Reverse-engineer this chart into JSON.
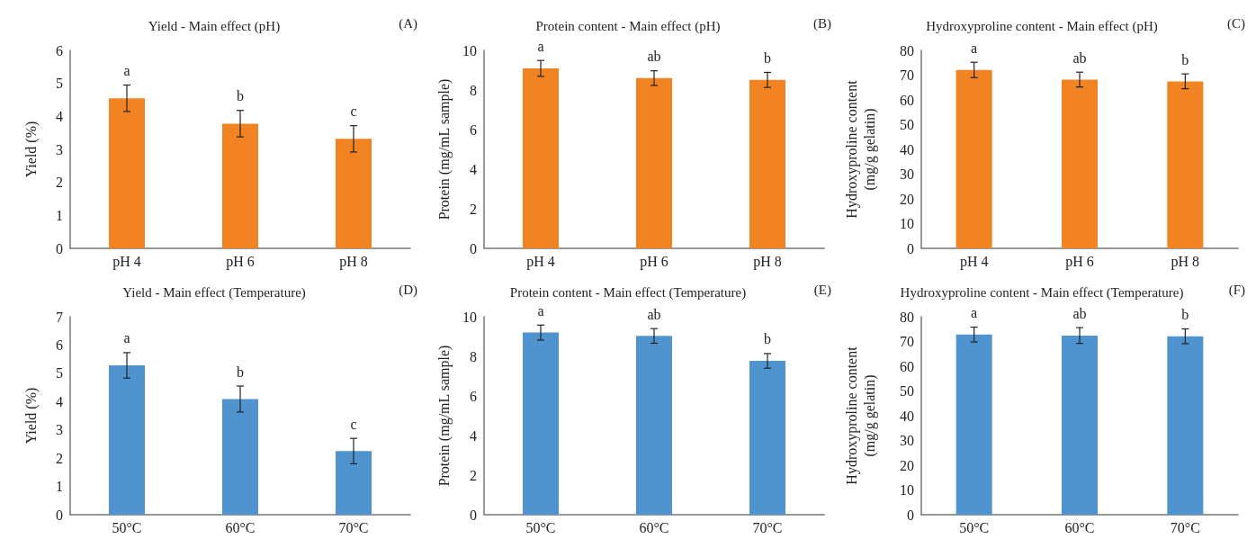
{
  "chart_data": [
    {
      "type": "bar",
      "title": "Yield - Main effect (pH)",
      "ylabel": "Yield (%)",
      "categories": [
        "pH 4",
        "pH 6",
        "pH 8"
      ],
      "values": [
        4.55,
        3.78,
        3.32
      ],
      "errors": [
        0.4,
        0.4,
        0.4
      ],
      "color": "#f28322",
      "ylim": [
        0,
        6
      ],
      "yticks": [
        0,
        1,
        2,
        3,
        4,
        5,
        6
      ],
      "grid": false,
      "annotations": [
        "(A)",
        {
          "text": "a",
          "x": "pH 4",
          "y": 4.55
        },
        {
          "text": "b",
          "x": "pH 6",
          "y": 3.78
        },
        {
          "text": "c",
          "x": "pH 8",
          "y": 3.32
        }
      ]
    },
    {
      "type": "bar",
      "title": "Protein content - Main effect (pH)",
      "ylabel": "Protein (mg/mL sample)",
      "categories": [
        "pH 4",
        "pH 6",
        "pH 8"
      ],
      "values": [
        9.09,
        8.6,
        8.51
      ],
      "errors": [
        0.4,
        0.37,
        0.38
      ],
      "color": "#f28322",
      "ylim": [
        0,
        10
      ],
      "yticks": [
        0,
        2,
        4,
        6,
        8,
        10
      ],
      "grid": false,
      "annotations": [
        "(B)",
        {
          "text": "a",
          "x": "pH 4",
          "y": 9.09
        },
        {
          "text": "ab",
          "x": "pH 6",
          "y": 8.6
        },
        {
          "text": "b",
          "x": "pH 8",
          "y": 8.51
        }
      ]
    },
    {
      "type": "bar",
      "title": "Hydroxyproline content - Main effect (pH)",
      "ylabel": "Hydroxyproline content\n(mg/g gelatin)",
      "categories": [
        "pH 4",
        "pH 6",
        "pH 8"
      ],
      "values": [
        72.1,
        68.2,
        67.5
      ],
      "errors": [
        3.1,
        3,
        3
      ],
      "color": "#f28322",
      "ylim": [
        0,
        80
      ],
      "yticks": [
        0,
        10,
        20,
        30,
        40,
        50,
        60,
        70,
        80
      ],
      "grid": false,
      "annotations": [
        "(C)",
        {
          "text": "a",
          "x": "pH 4",
          "y": 72.1
        },
        {
          "text": "ab",
          "x": "pH 6",
          "y": 68.2
        },
        {
          "text": "b",
          "x": "pH 8",
          "y": 67.5
        }
      ]
    },
    {
      "type": "bar",
      "title": "Yield - Main effect (Temperature)",
      "ylabel": "Yield (%)",
      "categories": [
        "50°C",
        "60°C",
        "70°C"
      ],
      "values": [
        5.28,
        4.09,
        2.25
      ],
      "errors": [
        0.45,
        0.46,
        0.45
      ],
      "color": "#4f94cf",
      "ylim": [
        0,
        7
      ],
      "yticks": [
        0,
        1,
        2,
        3,
        4,
        5,
        6,
        7
      ],
      "grid": false,
      "annotations": [
        "(D)",
        {
          "text": "a",
          "x": "50°C",
          "y": 5.28
        },
        {
          "text": "b",
          "x": "60°C",
          "y": 4.09
        },
        {
          "text": "c",
          "x": "70°C",
          "y": 2.25
        }
      ]
    },
    {
      "type": "bar",
      "title": "Protein content - Main effect (Temperature)",
      "ylabel": "Protein (mg/mL sample)",
      "categories": [
        "50°C",
        "60°C",
        "70°C"
      ],
      "values": [
        9.2,
        9.03,
        7.77
      ],
      "errors": [
        0.38,
        0.37,
        0.37
      ],
      "color": "#4f94cf",
      "ylim": [
        0,
        10
      ],
      "yticks": [
        0,
        2,
        4,
        6,
        8,
        10
      ],
      "grid": false,
      "annotations": [
        "(E)",
        {
          "text": "a",
          "x": "50°C",
          "y": 9.2
        },
        {
          "text": "ab",
          "x": "60°C",
          "y": 9.03
        },
        {
          "text": "b",
          "x": "70°C",
          "y": 7.77
        }
      ]
    },
    {
      "type": "bar",
      "title": "Hydroxyproline content - Main effect (Temperature)",
      "ylabel": "Hydroxyproline content\n(mg/g gelatin)",
      "categories": [
        "50°C",
        "60°C",
        "70°C"
      ],
      "values": [
        72.8,
        72.4,
        72.1
      ],
      "errors": [
        3,
        3.2,
        3
      ],
      "color": "#4f94cf",
      "ylim": [
        0,
        80
      ],
      "yticks": [
        0,
        10,
        20,
        30,
        40,
        50,
        60,
        70,
        80
      ],
      "grid": false,
      "annotations": [
        "(F)",
        {
          "text": "a",
          "x": "50°C",
          "y": 72.8
        },
        {
          "text": "ab",
          "x": "60°C",
          "y": 72.4
        },
        {
          "text": "b",
          "x": "70°C",
          "y": 72.1
        }
      ]
    }
  ]
}
